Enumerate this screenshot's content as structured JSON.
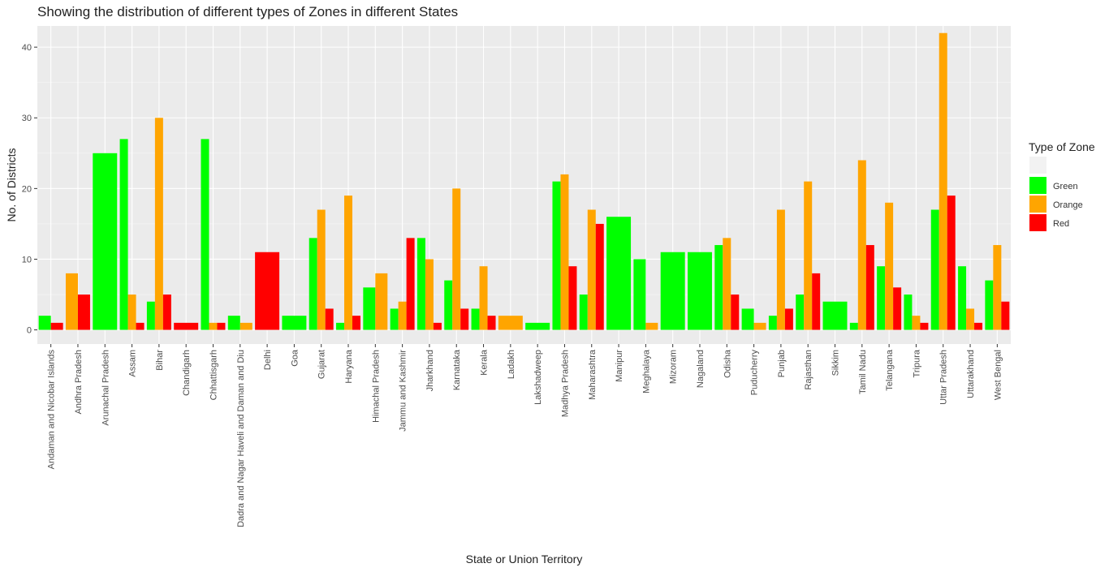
{
  "chart_data": {
    "type": "bar",
    "title": "Showing the distribution of different types of Zones in different States",
    "xlabel": "State or Union Territory",
    "ylabel": "No. of Districts",
    "ylim": [
      -2,
      43
    ],
    "yticks": [
      0,
      10,
      20,
      30,
      40
    ],
    "grid": true,
    "legend": {
      "title": "Type of Zone",
      "placement": "right"
    },
    "categories": [
      "Andaman and Nicobar Islands",
      "Andhra Pradesh",
      "Arunachal Pradesh",
      "Assam",
      "Bihar",
      "Chandigarh",
      "Chhattisgarh",
      "Dadra and Nagar Haveli and Daman and Diu",
      "Delhi",
      "Goa",
      "Gujarat",
      "Haryana",
      "Himachal Pradesh",
      "Jammu and Kashmir",
      "Jharkhand",
      "Karnataka",
      "Kerala",
      "Ladakh",
      "Lakshadweep",
      "Madhya Pradesh",
      "Maharashtra",
      "Manipur",
      "Meghalaya",
      "Mizoram",
      "Nagaland",
      "Odisha",
      "Puducherry",
      "Punjab",
      "Rajasthan",
      "Sikkim",
      "Tamil Nadu",
      "Telangana",
      "Tripura",
      "Uttar Pradesh",
      "Uttarakhand",
      "West Bengal"
    ],
    "series": [
      {
        "name": "Green",
        "color": "#00ff00",
        "values": [
          2,
          null,
          25,
          27,
          4,
          null,
          27,
          2,
          null,
          2,
          13,
          1,
          6,
          3,
          13,
          7,
          3,
          null,
          1,
          21,
          5,
          16,
          10,
          11,
          11,
          12,
          3,
          2,
          5,
          4,
          1,
          9,
          5,
          17,
          9,
          7
        ]
      },
      {
        "name": "Orange",
        "color": "#ffa500",
        "values": [
          null,
          8,
          null,
          5,
          30,
          null,
          1,
          1,
          null,
          null,
          17,
          19,
          8,
          4,
          10,
          20,
          9,
          2,
          null,
          22,
          17,
          null,
          1,
          null,
          null,
          13,
          1,
          17,
          21,
          null,
          24,
          18,
          2,
          42,
          3,
          12
        ]
      },
      {
        "name": "Red",
        "color": "#ff0000",
        "values": [
          1,
          5,
          null,
          1,
          5,
          1,
          1,
          null,
          11,
          null,
          3,
          2,
          null,
          13,
          1,
          3,
          2,
          null,
          null,
          9,
          15,
          null,
          null,
          null,
          null,
          5,
          null,
          3,
          8,
          null,
          12,
          6,
          1,
          19,
          1,
          4
        ]
      }
    ]
  }
}
